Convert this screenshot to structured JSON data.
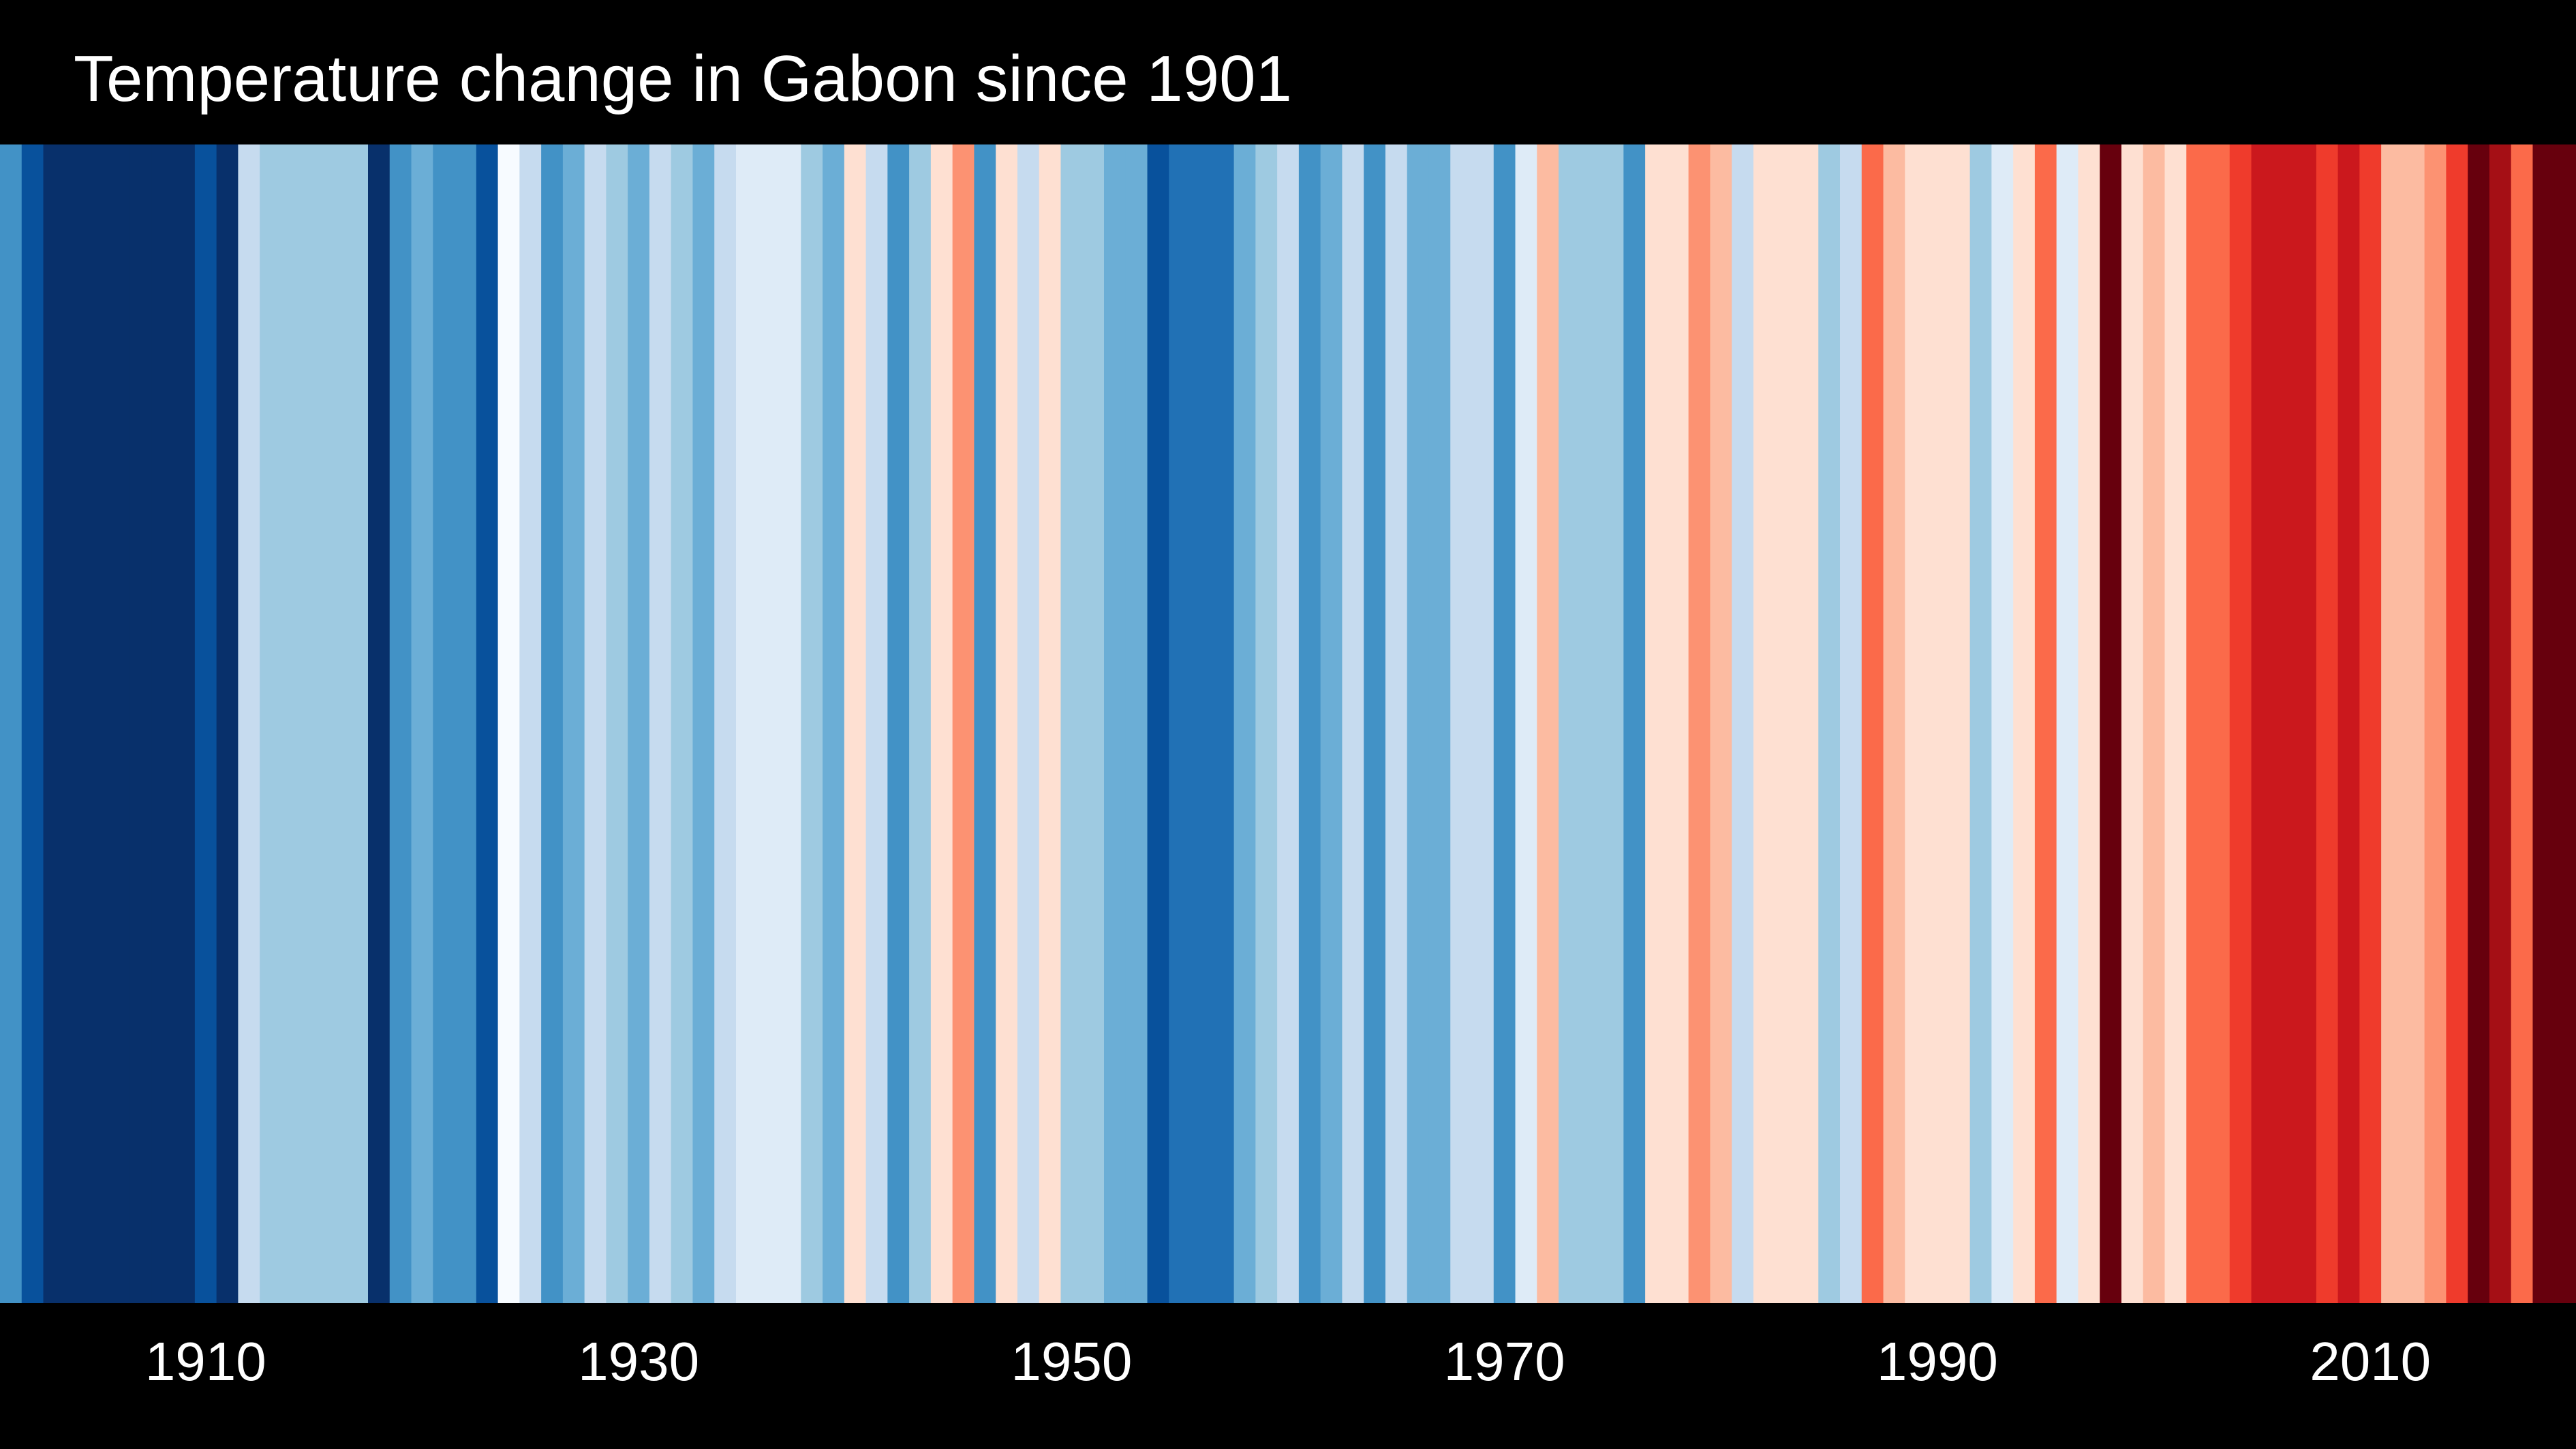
{
  "title": "Temperature change in Gabon since 1901",
  "chart_data": {
    "type": "heatmap",
    "title": "Temperature change in Gabon since 1901",
    "x": [
      1901,
      1902,
      1903,
      1904,
      1905,
      1906,
      1907,
      1908,
      1909,
      1910,
      1911,
      1912,
      1913,
      1914,
      1915,
      1916,
      1917,
      1918,
      1919,
      1920,
      1921,
      1922,
      1923,
      1924,
      1925,
      1926,
      1927,
      1928,
      1929,
      1930,
      1931,
      1932,
      1933,
      1934,
      1935,
      1936,
      1937,
      1938,
      1939,
      1940,
      1941,
      1942,
      1943,
      1944,
      1945,
      1946,
      1947,
      1948,
      1949,
      1950,
      1951,
      1952,
      1953,
      1954,
      1955,
      1956,
      1957,
      1958,
      1959,
      1960,
      1961,
      1962,
      1963,
      1964,
      1965,
      1966,
      1967,
      1968,
      1969,
      1970,
      1971,
      1972,
      1973,
      1974,
      1975,
      1976,
      1977,
      1978,
      1979,
      1980,
      1981,
      1982,
      1983,
      1984,
      1985,
      1986,
      1987,
      1988,
      1989,
      1990,
      1991,
      1992,
      1993,
      1994,
      1995,
      1996,
      1997,
      1998,
      1999,
      2000,
      2001,
      2002,
      2003,
      2004,
      2005,
      2006,
      2007,
      2008,
      2009,
      2010,
      2011,
      2012,
      2013,
      2014,
      2015,
      2016,
      2017,
      2018,
      2019
    ],
    "colors": [
      "#4292c6",
      "#08519c",
      "#08306b",
      "#08306b",
      "#08306b",
      "#08306b",
      "#08306b",
      "#08306b",
      "#08306b",
      "#08519c",
      "#08306b",
      "#c6dbef",
      "#9ecae1",
      "#9ecae1",
      "#9ecae1",
      "#9ecae1",
      "#9ecae1",
      "#08306b",
      "#4292c6",
      "#6baed6",
      "#4292c6",
      "#4292c6",
      "#08519c",
      "#f7fbff",
      "#c6dbef",
      "#4292c6",
      "#6baed6",
      "#c6dbef",
      "#9ecae1",
      "#6baed6",
      "#c6dbef",
      "#9ecae1",
      "#6baed6",
      "#c6dbef",
      "#deebf7",
      "#deebf7",
      "#deebf7",
      "#9ecae1",
      "#6baed6",
      "#fee0d2",
      "#c6dbef",
      "#4292c6",
      "#9ecae1",
      "#fee0d2",
      "#fc9272",
      "#4292c6",
      "#fee0d2",
      "#c6dbef",
      "#fee0d2",
      "#9ecae1",
      "#9ecae1",
      "#6baed6",
      "#6baed6",
      "#08519c",
      "#2171b5",
      "#2171b5",
      "#2171b5",
      "#6baed6",
      "#9ecae1",
      "#c6dbef",
      "#4292c6",
      "#6baed6",
      "#c6dbef",
      "#4292c6",
      "#c6dbef",
      "#6baed6",
      "#6baed6",
      "#c6dbef",
      "#c6dbef",
      "#4292c6",
      "#deebf7",
      "#fcbba1",
      "#9ecae1",
      "#9ecae1",
      "#9ecae1",
      "#4292c6",
      "#fee0d2",
      "#fee0d2",
      "#fc9272",
      "#fcbba1",
      "#c6dbef",
      "#fee0d2",
      "#fee0d2",
      "#fee0d2",
      "#9ecae1",
      "#c6dbef",
      "#fb6a4a",
      "#fcbba1",
      "#fee0d2",
      "#fee0d2",
      "#fee0d2",
      "#9ecae1",
      "#deebf7",
      "#fee0d2",
      "#fb6a4a",
      "#deebf7",
      "#fee0d2",
      "#67000d",
      "#fee0d2",
      "#fcbba1",
      "#fee0d2",
      "#fb6a4a",
      "#fb6a4a",
      "#ef3b2c",
      "#cb181d",
      "#cb181d",
      "#cb181d",
      "#ef3b2c",
      "#cb181d",
      "#ef3b2c",
      "#fcbba1",
      "#fcbba1",
      "#fc9272",
      "#ef3b2c",
      "#67000d",
      "#a50f15",
      "#fb6a4a",
      "#67000d",
      "#67000d"
    ],
    "xticks": [
      "1910",
      "1930",
      "1950",
      "1970",
      "1990",
      "2010"
    ],
    "xlabel": "",
    "ylabel": "",
    "legend": false,
    "grid": false
  },
  "theme": {
    "background": "#000000",
    "text": "#ffffff"
  }
}
